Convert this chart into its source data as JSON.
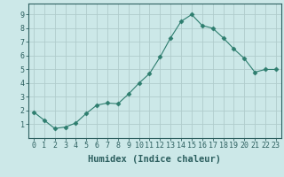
{
  "x": [
    0,
    1,
    2,
    3,
    4,
    5,
    6,
    7,
    8,
    9,
    10,
    11,
    12,
    13,
    14,
    15,
    16,
    17,
    18,
    19,
    20,
    21,
    22,
    23
  ],
  "y": [
    1.9,
    1.3,
    0.7,
    0.8,
    1.1,
    1.8,
    2.4,
    2.55,
    2.5,
    3.2,
    4.0,
    4.7,
    5.9,
    7.3,
    8.5,
    9.0,
    8.2,
    8.0,
    7.3,
    6.5,
    5.8,
    4.8,
    5.0,
    5.0
  ],
  "line_color": "#2d7d6e",
  "marker": "D",
  "marker_size": 2.5,
  "bg_color": "#cce8e8",
  "grid_color": "#b0cccc",
  "xlabel": "Humidex (Indice chaleur)",
  "ylabel": "",
  "xlim": [
    -0.5,
    23.5
  ],
  "ylim": [
    0.0,
    9.8
  ],
  "yticks": [
    1,
    2,
    3,
    4,
    5,
    6,
    7,
    8,
    9
  ],
  "xticks": [
    0,
    1,
    2,
    3,
    4,
    5,
    6,
    7,
    8,
    9,
    10,
    11,
    12,
    13,
    14,
    15,
    16,
    17,
    18,
    19,
    20,
    21,
    22,
    23
  ],
  "tick_color": "#2d6060",
  "label_fontsize": 6.0,
  "xlabel_fontsize": 7.5
}
